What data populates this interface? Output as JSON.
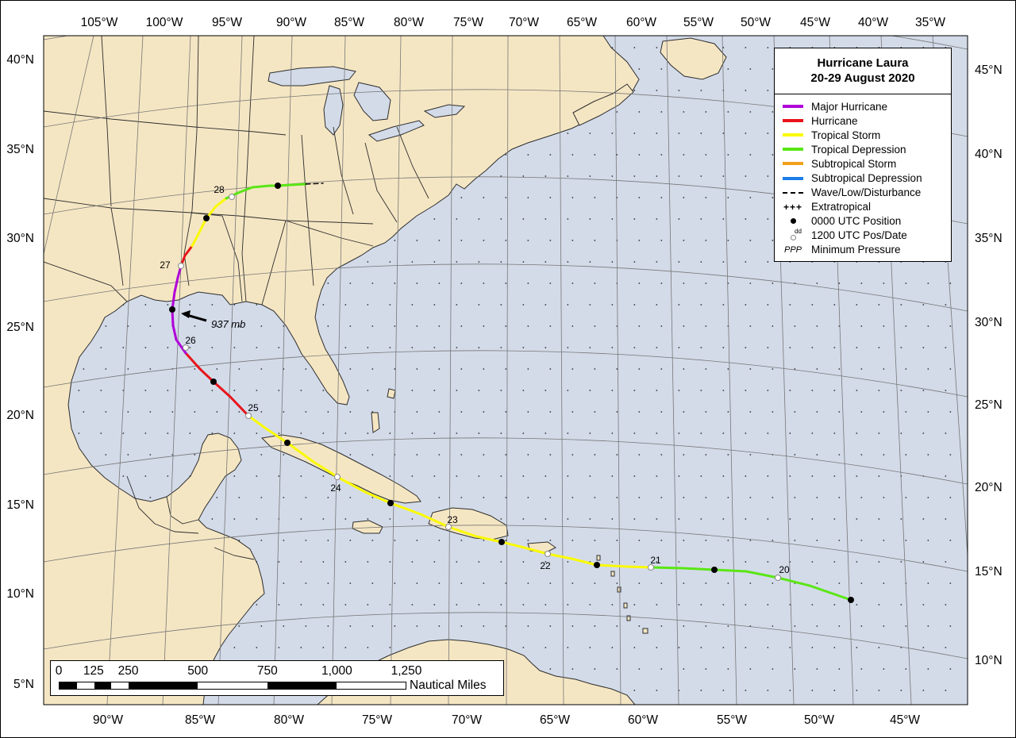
{
  "map": {
    "title": "Hurricane Laura",
    "subtitle": "20-29 August 2020",
    "colors": {
      "ocean": "#d3dbe9",
      "land": "#f5e6c3",
      "border": "#2d2d2d",
      "major_hurricane": "#b000d8",
      "hurricane": "#e8141a",
      "tropical_storm": "#fafa00",
      "tropical_depression": "#5ae615",
      "subtropical_storm": "#f3a01c",
      "subtropical_depression": "#1a7de8",
      "wave": "#000000"
    },
    "lat_labels_left": [
      "40°N",
      "35°N",
      "30°N",
      "25°N",
      "20°N",
      "15°N",
      "10°N",
      "5°N"
    ],
    "lat_labels_right": [
      "45°N",
      "40°N",
      "35°N",
      "30°N",
      "25°N",
      "20°N",
      "15°N",
      "10°N"
    ],
    "lon_labels_top": [
      "105°W",
      "100°W",
      "95°W",
      "90°W",
      "85°W",
      "80°W",
      "75°W",
      "70°W",
      "65°W",
      "60°W",
      "55°W",
      "50°W",
      "45°W",
      "40°W",
      "35°W"
    ],
    "lon_labels_bottom": [
      "90°W",
      "85°W",
      "80°W",
      "75°W",
      "70°W",
      "65°W",
      "60°W",
      "55°W",
      "50°W",
      "45°W"
    ],
    "legend": [
      {
        "label": "Major Hurricane",
        "symbol": "line",
        "color": "#b000d8"
      },
      {
        "label": "Hurricane",
        "symbol": "line",
        "color": "#e8141a"
      },
      {
        "label": "Tropical Storm",
        "symbol": "line",
        "color": "#fafa00"
      },
      {
        "label": "Tropical Depression",
        "symbol": "line",
        "color": "#5ae615"
      },
      {
        "label": "Subtropical Storm",
        "symbol": "line",
        "color": "#f3a01c"
      },
      {
        "label": "Subtropical Depression",
        "symbol": "line",
        "color": "#1a7de8"
      },
      {
        "label": "Wave/Low/Disturbance",
        "symbol": "dash",
        "color": "#000000"
      },
      {
        "label": "Extratropical",
        "symbol": "plus",
        "color": "#000000"
      },
      {
        "label": "0000 UTC Position",
        "symbol": "dot",
        "color": "#000000"
      },
      {
        "label": "1200 UTC Pos/Date",
        "symbol": "odot",
        "color": "#ffffff",
        "sup": "dd"
      },
      {
        "label": "Minimum Pressure",
        "symbol": "ppp",
        "text": "PPP"
      }
    ],
    "scale": {
      "labels": [
        "0",
        "125",
        "250",
        "500",
        "750",
        "1,000",
        "1,250"
      ],
      "values": [
        0,
        125,
        250,
        500,
        750,
        1000,
        1250
      ],
      "unit": "Nautical Miles"
    },
    "date_labels": [
      "20",
      "21",
      "22",
      "23",
      "24",
      "25",
      "26",
      "27",
      "28"
    ],
    "pressure_label": "937 mb"
  }
}
